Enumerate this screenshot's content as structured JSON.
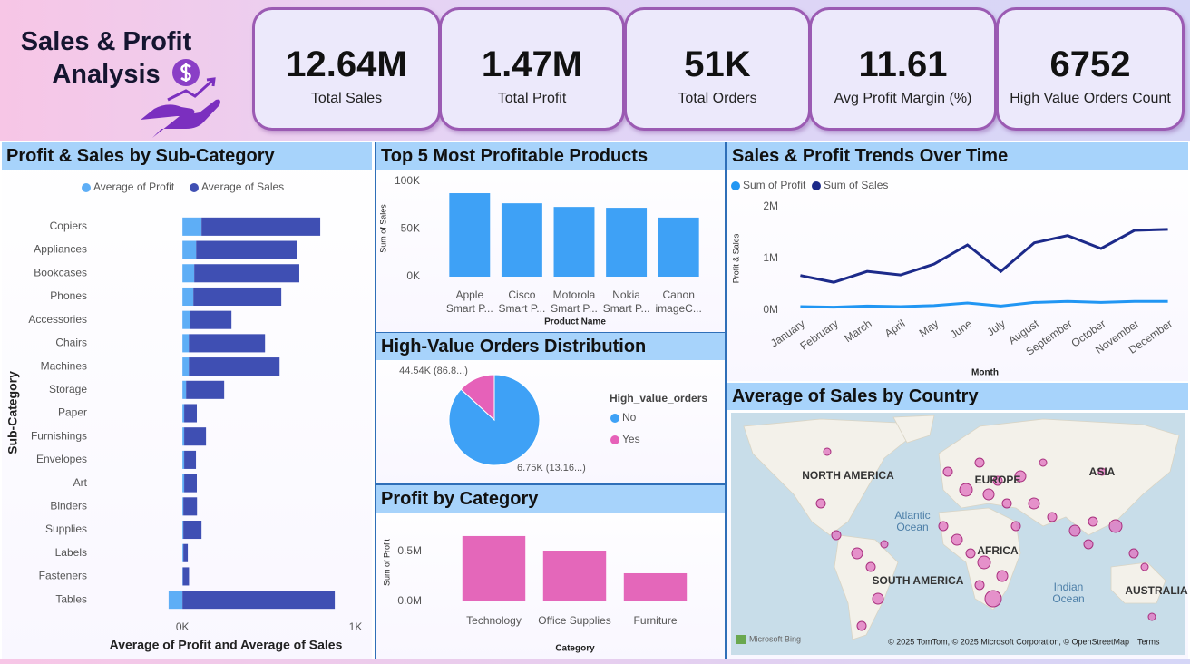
{
  "header": {
    "title": "Sales & Profit Analysis"
  },
  "kpis": [
    {
      "value": "12.64M",
      "label": "Total Sales"
    },
    {
      "value": "1.47M",
      "label": "Total Profit"
    },
    {
      "value": "51K",
      "label": "Total Orders"
    },
    {
      "value": "11.61",
      "label": "Avg Profit Margin (%)"
    },
    {
      "value": "6752",
      "label": "High Value Orders Count"
    }
  ],
  "chart_data": [
    {
      "type": "hbar-stacked",
      "title": "Profit & Sales by Sub-Category",
      "categories": [
        "Copiers",
        "Appliances",
        "Bookcases",
        "Phones",
        "Accessories",
        "Chairs",
        "Machines",
        "Storage",
        "Paper",
        "Furnishings",
        "Envelopes",
        "Art",
        "Binders",
        "Supplies",
        "Labels",
        "Fasteners",
        "Tables"
      ],
      "series": [
        {
          "name": "Average of Profit",
          "color": "#5eaef6",
          "values": [
            110,
            79,
            68,
            63,
            42,
            37,
            37,
            21,
            10,
            10,
            10,
            10,
            5,
            5,
            5,
            2,
            -80
          ]
        },
        {
          "name": "Average of Sales",
          "color": "#3f4fb3",
          "values": [
            686,
            581,
            607,
            508,
            241,
            440,
            524,
            220,
            73,
            126,
            68,
            73,
            79,
            105,
            26,
            36,
            880
          ]
        }
      ],
      "xlim": [
        -200,
        1000
      ],
      "xticks": [
        {
          "value": 0,
          "label": "0K"
        },
        {
          "value": 1000,
          "label": "1K"
        }
      ],
      "x_label": "Average of Profit and Average of Sales",
      "y_label": "Sub-Category",
      "grid": false
    },
    {
      "type": "bar",
      "title": "Top 5 Most Profitable Products",
      "categories": [
        "Apple Smart P...",
        "Cisco Smart P...",
        "Motorola Smart P...",
        "Nokia Smart P...",
        "Canon imageC..."
      ],
      "values": [
        87600,
        77000,
        73200,
        72300,
        62000
      ],
      "color": "#3ea1f6",
      "ylim": [
        0,
        110000
      ],
      "yticks": [
        {
          "value": 0,
          "label": "0K"
        },
        {
          "value": 50000,
          "label": "50K"
        },
        {
          "value": 100000,
          "label": "100K"
        }
      ],
      "x_label": "Product Name",
      "y_label": "Sum of Sales",
      "grid": false
    },
    {
      "type": "pie",
      "title": "High-Value Orders Distribution",
      "legend_title": "High_value_orders",
      "categories": [
        "No",
        "Yes"
      ],
      "values": [
        44540,
        6750
      ],
      "value_labels": [
        "44.54K (86.8...)",
        "6.75K (13.16...)"
      ],
      "colors": [
        "#3ea1f6",
        "#e661b9"
      ]
    },
    {
      "type": "bar",
      "title": "Profit by Category",
      "categories": [
        "Technology",
        "Office Supplies",
        "Furniture"
      ],
      "values": [
        655000,
        509000,
        282000
      ],
      "color": "#e467ba",
      "ylim": [
        0,
        700000
      ],
      "yticks": [
        {
          "value": 0,
          "label": "0.0M"
        },
        {
          "value": 500000,
          "label": "0.5M"
        }
      ],
      "x_label": "Category",
      "y_label": "Sum of Profit",
      "grid": false
    },
    {
      "type": "line",
      "title": "Sales & Profit Trends Over Time",
      "categories": [
        "January",
        "February",
        "March",
        "April",
        "May",
        "June",
        "July",
        "August",
        "September",
        "October",
        "November",
        "December"
      ],
      "series": [
        {
          "name": "Sum of Profit",
          "color": "#2196f3",
          "values": [
            70000,
            60000,
            80000,
            70000,
            90000,
            140000,
            80000,
            150000,
            170000,
            150000,
            170000,
            170000
          ]
        },
        {
          "name": "Sum of Sales",
          "color": "#1c2a8a",
          "values": [
            670000,
            540000,
            750000,
            680000,
            890000,
            1260000,
            750000,
            1300000,
            1440000,
            1190000,
            1540000,
            1560000
          ]
        }
      ],
      "ylim": [
        0,
        2100000
      ],
      "yticks": [
        {
          "value": 0,
          "label": "0M"
        },
        {
          "value": 1000000,
          "label": "1M"
        },
        {
          "value": 2000000,
          "label": "2M"
        }
      ],
      "x_label": "Month",
      "y_label": "Profit & Sales",
      "grid": false
    }
  ],
  "map": {
    "title": "Average of Sales by Country",
    "labels": [
      "NORTH AMERICA",
      "EUROPE",
      "ASIA",
      "SOUTH AMERICA",
      "AFRICA",
      "AUSTRALIA",
      "Atlantic Ocean",
      "Indian Ocean"
    ],
    "brand": "Microsoft Bing",
    "attribution": "© 2025 TomTom, © 2025 Microsoft Corporation, © OpenStreetMap",
    "terms": "Terms"
  }
}
